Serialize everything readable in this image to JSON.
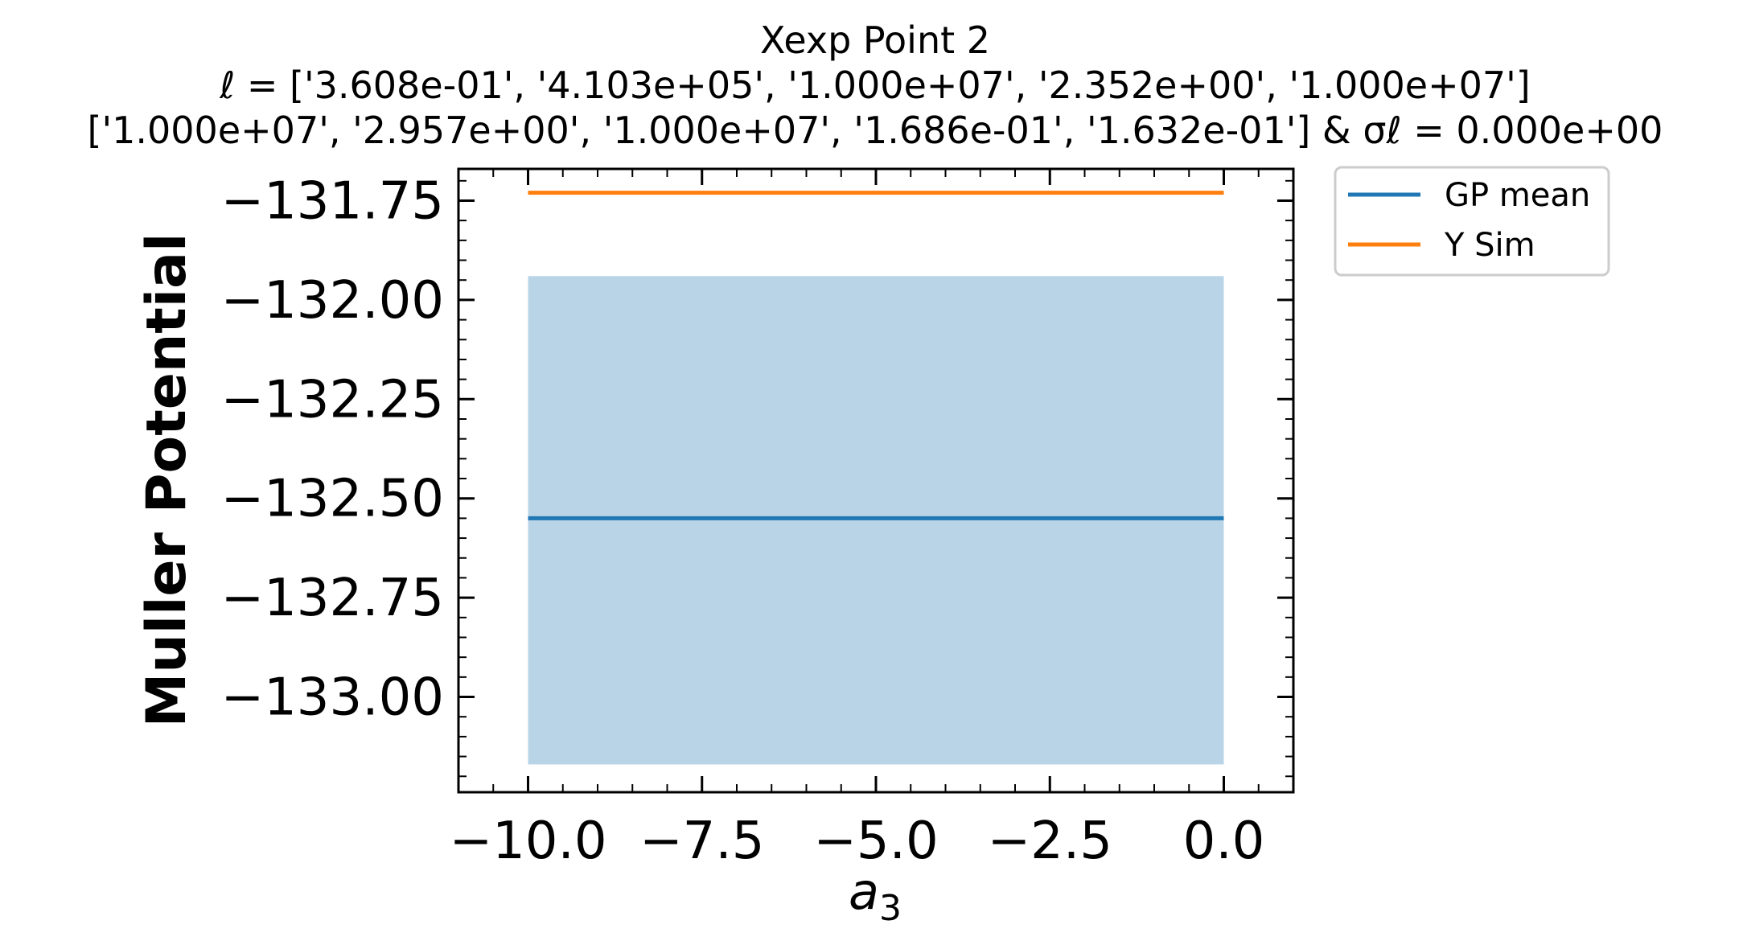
{
  "title_lines": [
    "Xexp Point 2",
    "ℓ = ['3.608e-01', '4.103e+05', '1.000e+07', '2.352e+00', '1.000e+07']",
    "['1.000e+07', '2.957e+00', '1.000e+07', '1.686e-01', '1.632e-01'] & σℓ = 0.000e+00"
  ],
  "chart_data": {
    "type": "line",
    "title": "Xexp Point 2",
    "xlabel": "a3",
    "ylabel": "Muller Potential",
    "xlim": [
      -11.0,
      1.0
    ],
    "ylim": [
      -133.24,
      -131.67
    ],
    "x_ticks": [
      -10.0,
      -7.5,
      -5.0,
      -2.5,
      0.0
    ],
    "x_tick_labels": [
      "−10.0",
      "−7.5",
      "−5.0",
      "−2.5",
      "0.0"
    ],
    "y_ticks": [
      -131.75,
      -132.0,
      -132.25,
      -132.5,
      -132.75,
      -133.0
    ],
    "y_tick_labels": [
      "−131.75",
      "−132.00",
      "−132.25",
      "−132.50",
      "−132.75",
      "−133.00"
    ],
    "series": [
      {
        "name": "GP mean",
        "color": "#1f77b4",
        "x": [
          -10.0,
          0.0
        ],
        "y": [
          -132.55,
          -132.55
        ]
      },
      {
        "name": "Y Sim",
        "color": "#ff7f0e",
        "x": [
          -10.0,
          0.0
        ],
        "y": [
          -131.73,
          -131.73
        ]
      }
    ],
    "band": {
      "color": "#bad4e7",
      "x": [
        -10.0,
        0.0
      ],
      "lower": -133.17,
      "upper": -131.94
    },
    "legend_position": "outside-upper-right",
    "grid": false
  }
}
